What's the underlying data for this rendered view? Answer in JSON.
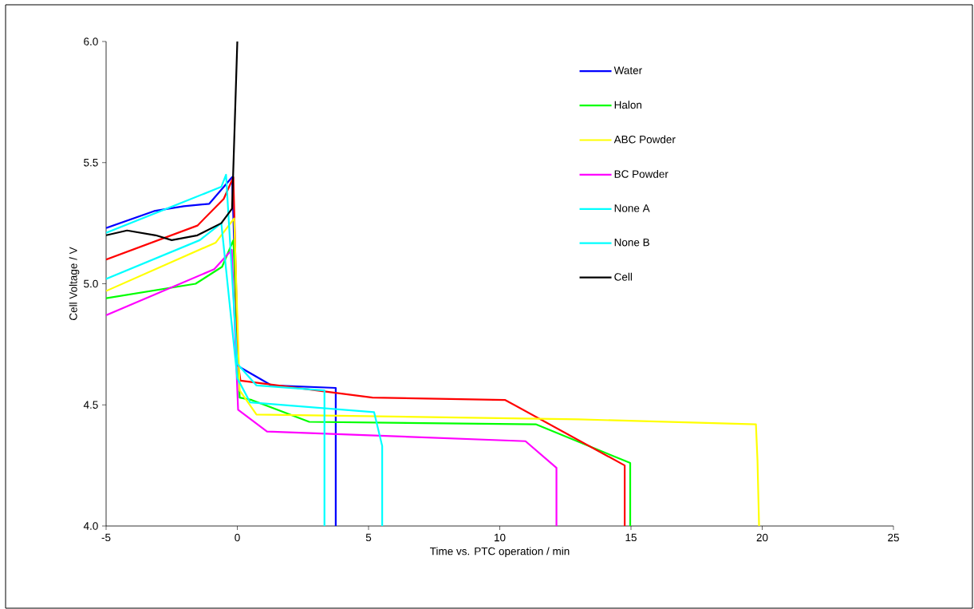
{
  "chart_data": {
    "type": "line",
    "xlabel": "Time vs. PTC operation / min",
    "ylabel": "Cell Voltage / V",
    "xlim": [
      -5,
      25
    ],
    "xticks": [
      -5,
      0,
      5,
      10,
      15,
      20,
      25
    ],
    "ylim": [
      4,
      6
    ],
    "yticks": [
      {
        "value": 4,
        "label": "4.0"
      },
      {
        "value": 4.5,
        "label": "4.5"
      },
      {
        "value": 5,
        "label": "5.0"
      },
      {
        "value": 5.5,
        "label": "5.5"
      },
      {
        "value": 6,
        "label": "6.0"
      }
    ],
    "legend": "top right",
    "grid": false,
    "marker": "none",
    "line_style": "solid",
    "series": [
      {
        "name": "Water",
        "color": "#0000ff",
        "x": [
          -5,
          -3.17,
          -2.04,
          -1.07,
          -0.2,
          0.03,
          1.31,
          3.75,
          3.75
        ],
        "values": [
          5.23,
          5.3,
          5.32,
          5.33,
          5.44,
          4.66,
          4.58,
          4.57,
          4.0
        ]
      },
      {
        "name": "Halon",
        "color": "#00ff00",
        "x": [
          -5,
          -1.59,
          -0.58,
          -0.15,
          0.09,
          0.55,
          2.74,
          11.37,
          14.97,
          14.97
        ],
        "values": [
          4.94,
          5.0,
          5.07,
          5.18,
          4.53,
          4.52,
          4.43,
          4.42,
          4.26,
          4.0
        ]
      },
      {
        "color": "#ff0000",
        "x": [
          -5,
          -1.52,
          -0.52,
          -0.15,
          0.03,
          0.12,
          5.15,
          10.21,
          14.76,
          14.76
        ],
        "values": [
          5.1,
          5.24,
          5.35,
          5.44,
          4.67,
          4.6,
          4.53,
          4.52,
          4.25,
          4.0
        ]
      },
      {
        "name": "ABC Powder",
        "color": "#ffff00",
        "x": [
          -5,
          -0.82,
          -0.12,
          0.09,
          0.73,
          13.0,
          19.76,
          19.82,
          19.88
        ],
        "values": [
          4.97,
          5.17,
          5.27,
          4.56,
          4.46,
          4.44,
          4.42,
          4.27,
          4.0
        ]
      },
      {
        "name": "BC Powder",
        "color": "#ff00ff",
        "x": [
          -5,
          -0.88,
          -0.21,
          0.03,
          1.13,
          10.98,
          12.16,
          12.16
        ],
        "values": [
          4.87,
          5.06,
          5.14,
          4.48,
          4.39,
          4.35,
          4.24,
          4.0
        ]
      },
      {
        "name": "None A",
        "color": "#00ffff",
        "x": [
          -5,
          -0.61,
          -0.43,
          0,
          0.73,
          3.32,
          3.32
        ],
        "values": [
          5.21,
          5.4,
          5.45,
          4.67,
          4.58,
          4.56,
          4.0
        ]
      },
      {
        "name": "None B",
        "color": "#00ffff",
        "x": [
          -5,
          -1.43,
          -0.61,
          0,
          0.49,
          5.21,
          5.52,
          5.52
        ],
        "values": [
          5.02,
          5.18,
          5.25,
          4.61,
          4.51,
          4.47,
          4.33,
          4.0
        ]
      },
      {
        "name": "Cell",
        "color": "#000000",
        "x": [
          -5,
          -4.2,
          -3.11,
          -2.5,
          -1.52,
          -0.61,
          -0.2,
          0
        ],
        "values": [
          5.2,
          5.22,
          5.2,
          5.18,
          5.2,
          5.25,
          5.31,
          6.0
        ]
      }
    ]
  }
}
